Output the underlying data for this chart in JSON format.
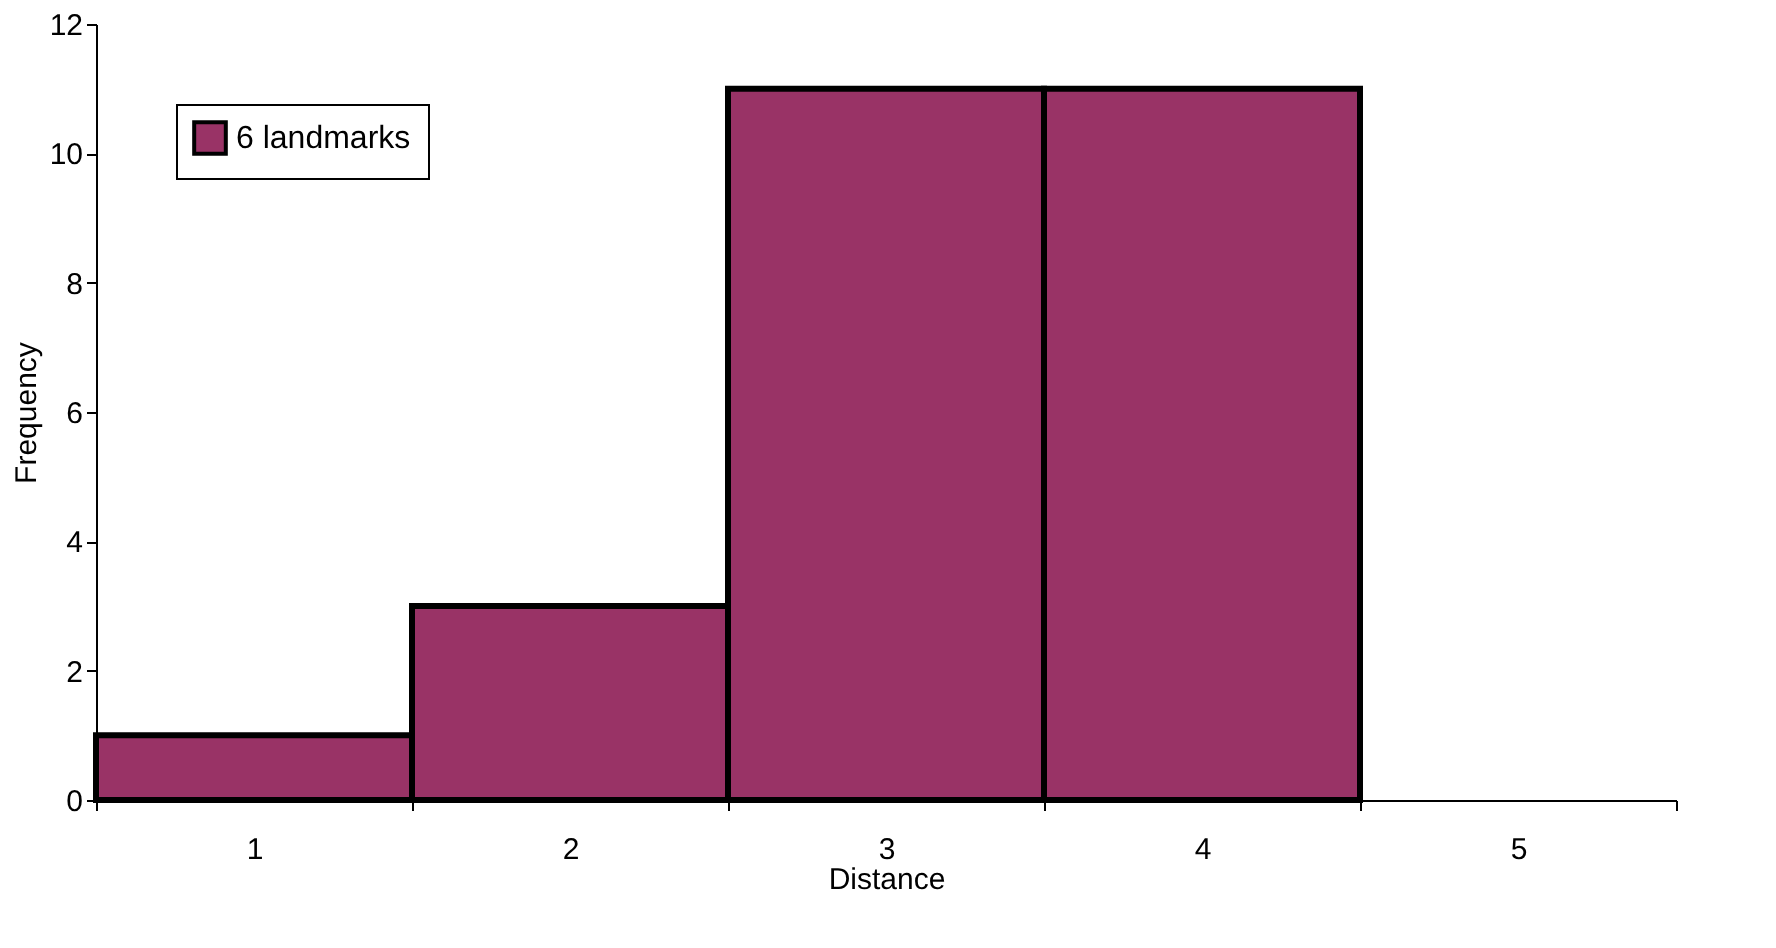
{
  "chart_data": {
    "type": "bar",
    "xlabel": "Distance",
    "ylabel": "Frequency",
    "categories": [
      "1",
      "2",
      "3",
      "4",
      "5"
    ],
    "series": [
      {
        "name": "6 landmarks",
        "color": "#993366",
        "values": [
          1,
          3,
          11,
          11,
          null
        ]
      }
    ],
    "ylim": [
      0,
      12
    ],
    "yticks": [
      0,
      2,
      4,
      6,
      8,
      10,
      12
    ],
    "grid": false,
    "legend": "top left"
  }
}
